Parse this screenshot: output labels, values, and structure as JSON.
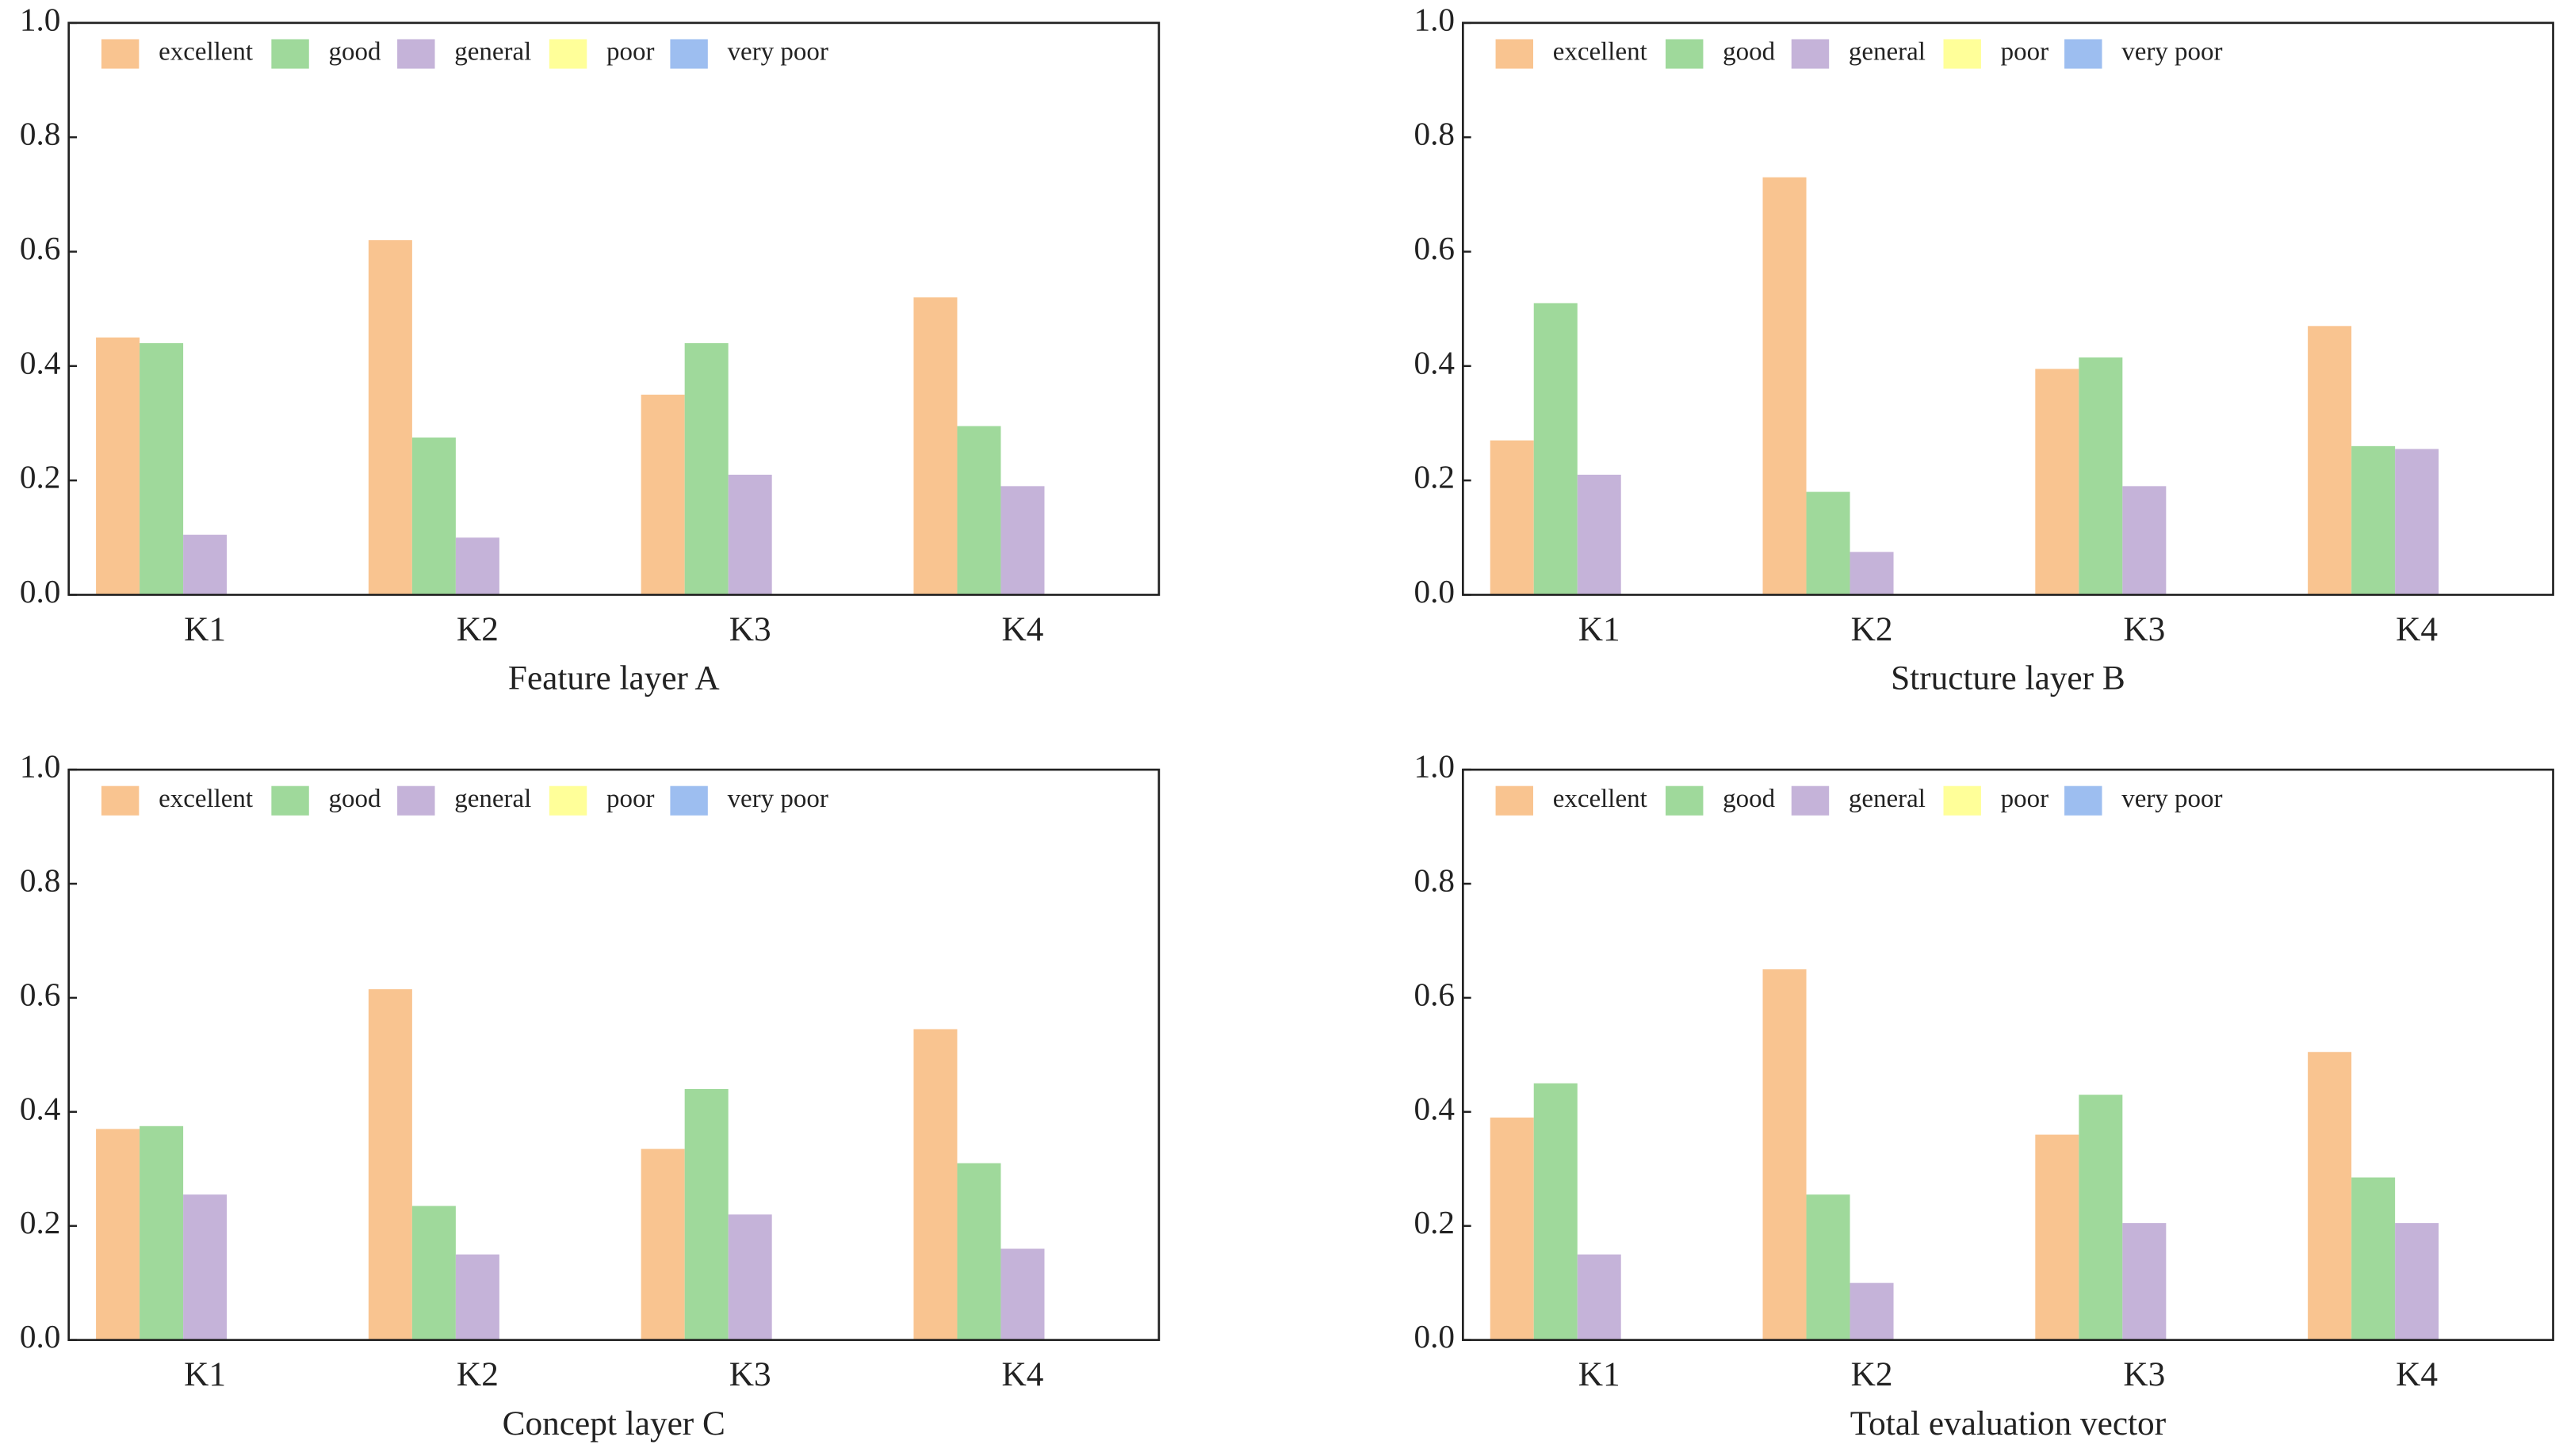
{
  "chart_data": [
    {
      "type": "bar",
      "xlabel": "Feature layer A",
      "categories": [
        "K1",
        "K2",
        "K3",
        "K4"
      ],
      "series": [
        {
          "name": "excellent",
          "color": "#f9c490",
          "values": [
            0.45,
            0.62,
            0.35,
            0.52
          ]
        },
        {
          "name": "good",
          "color": "#9fd99b",
          "values": [
            0.44,
            0.275,
            0.44,
            0.295
          ]
        },
        {
          "name": "general",
          "color": "#c5b3d9",
          "values": [
            0.105,
            0.1,
            0.21,
            0.19
          ]
        },
        {
          "name": "poor",
          "color": "#ffff99",
          "values": [
            0,
            0,
            0,
            0
          ]
        },
        {
          "name": "very poor",
          "color": "#9dbef0",
          "values": [
            0,
            0,
            0,
            0
          ]
        }
      ],
      "ylim": [
        0,
        1
      ],
      "yticks": [
        {
          "value": 0,
          "label": "0.0"
        },
        {
          "value": 0.2,
          "label": "0.2"
        },
        {
          "value": 0.4,
          "label": "0.4"
        },
        {
          "value": 0.6,
          "label": "0.6"
        },
        {
          "value": 0.8,
          "label": "0.8"
        },
        {
          "value": 1,
          "label": "1.0"
        }
      ],
      "legend": "upper left"
    },
    {
      "type": "bar",
      "xlabel": "Structure layer B",
      "categories": [
        "K1",
        "K2",
        "K3",
        "K4"
      ],
      "series": [
        {
          "name": "excellent",
          "color": "#f9c490",
          "values": [
            0.27,
            0.73,
            0.395,
            0.47
          ]
        },
        {
          "name": "good",
          "color": "#9fd99b",
          "values": [
            0.51,
            0.18,
            0.415,
            0.26
          ]
        },
        {
          "name": "general",
          "color": "#c5b3d9",
          "values": [
            0.21,
            0.075,
            0.19,
            0.255
          ]
        },
        {
          "name": "poor",
          "color": "#ffff99",
          "values": [
            0,
            0,
            0,
            0
          ]
        },
        {
          "name": "very poor",
          "color": "#9dbef0",
          "values": [
            0,
            0,
            0,
            0
          ]
        }
      ],
      "ylim": [
        0,
        1
      ],
      "yticks": [
        {
          "value": 0,
          "label": "0.0"
        },
        {
          "value": 0.2,
          "label": "0.2"
        },
        {
          "value": 0.4,
          "label": "0.4"
        },
        {
          "value": 0.6,
          "label": "0.6"
        },
        {
          "value": 0.8,
          "label": "0.8"
        },
        {
          "value": 1,
          "label": "1.0"
        }
      ],
      "legend": "upper left"
    },
    {
      "type": "bar",
      "xlabel": "Concept layer C",
      "categories": [
        "K1",
        "K2",
        "K3",
        "K4"
      ],
      "series": [
        {
          "name": "excellent",
          "color": "#f9c490",
          "values": [
            0.37,
            0.615,
            0.335,
            0.545
          ]
        },
        {
          "name": "good",
          "color": "#9fd99b",
          "values": [
            0.375,
            0.235,
            0.44,
            0.31
          ]
        },
        {
          "name": "general",
          "color": "#c5b3d9",
          "values": [
            0.255,
            0.15,
            0.22,
            0.16
          ]
        },
        {
          "name": "poor",
          "color": "#ffff99",
          "values": [
            0,
            0,
            0,
            0
          ]
        },
        {
          "name": "very poor",
          "color": "#9dbef0",
          "values": [
            0,
            0,
            0,
            0
          ]
        }
      ],
      "ylim": [
        0,
        1
      ],
      "yticks": [
        {
          "value": 0,
          "label": "0.0"
        },
        {
          "value": 0.2,
          "label": "0.2"
        },
        {
          "value": 0.4,
          "label": "0.4"
        },
        {
          "value": 0.6,
          "label": "0.6"
        },
        {
          "value": 0.8,
          "label": "0.8"
        },
        {
          "value": 1,
          "label": "1.0"
        }
      ],
      "legend": "upper left"
    },
    {
      "type": "bar",
      "xlabel": "Total evaluation vector",
      "categories": [
        "K1",
        "K2",
        "K3",
        "K4"
      ],
      "series": [
        {
          "name": "excellent",
          "color": "#f9c490",
          "values": [
            0.39,
            0.65,
            0.36,
            0.505
          ]
        },
        {
          "name": "good",
          "color": "#9fd99b",
          "values": [
            0.45,
            0.255,
            0.43,
            0.285
          ]
        },
        {
          "name": "general",
          "color": "#c5b3d9",
          "values": [
            0.15,
            0.1,
            0.205,
            0.205
          ]
        },
        {
          "name": "poor",
          "color": "#ffff99",
          "values": [
            0,
            0,
            0,
            0
          ]
        },
        {
          "name": "very poor",
          "color": "#9dbef0",
          "values": [
            0,
            0,
            0,
            0
          ]
        }
      ],
      "ylim": [
        0,
        1
      ],
      "yticks": [
        {
          "value": 0,
          "label": "0.0"
        },
        {
          "value": 0.2,
          "label": "0.2"
        },
        {
          "value": 0.4,
          "label": "0.4"
        },
        {
          "value": 0.6,
          "label": "0.6"
        },
        {
          "value": 0.8,
          "label": "0.8"
        },
        {
          "value": 1,
          "label": "1.0"
        }
      ],
      "legend": "upper left"
    }
  ]
}
